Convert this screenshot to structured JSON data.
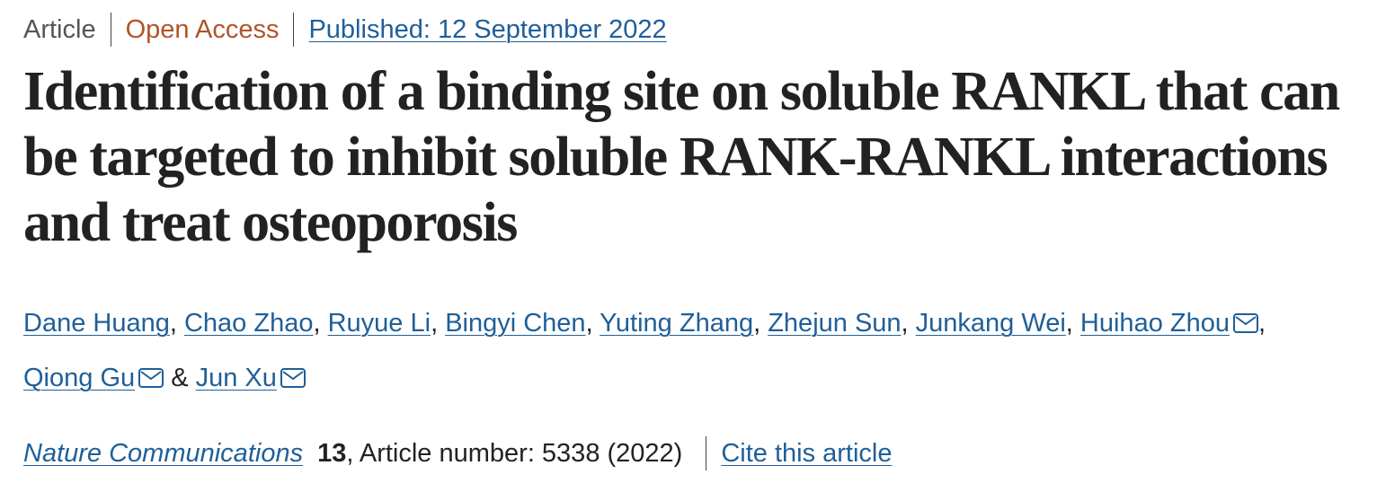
{
  "meta": {
    "type": "Article",
    "access": "Open Access",
    "published": "Published: 12 September 2022"
  },
  "title": "Identification of a binding site on soluble RANKL that can be targeted to inhibit soluble RANK-RANKL interactions and treat osteoporosis",
  "authors": {
    "list": [
      {
        "name": "Dane Huang",
        "corresponding": false
      },
      {
        "name": "Chao Zhao",
        "corresponding": false
      },
      {
        "name": "Ruyue Li",
        "corresponding": false
      },
      {
        "name": "Bingyi Chen",
        "corresponding": false
      },
      {
        "name": "Yuting Zhang",
        "corresponding": false
      },
      {
        "name": "Zhejun Sun",
        "corresponding": false
      },
      {
        "name": "Junkang Wei",
        "corresponding": false
      },
      {
        "name": "Huihao Zhou",
        "corresponding": true
      },
      {
        "name": "Qiong Gu",
        "corresponding": true
      },
      {
        "name": "Jun Xu",
        "corresponding": true
      }
    ],
    "separator": ",",
    "last_separator": "&"
  },
  "journal": {
    "name": "Nature Communications",
    "volume": "13",
    "article_number": ", Article number: 5338 (2022)",
    "cite": "Cite this article"
  }
}
